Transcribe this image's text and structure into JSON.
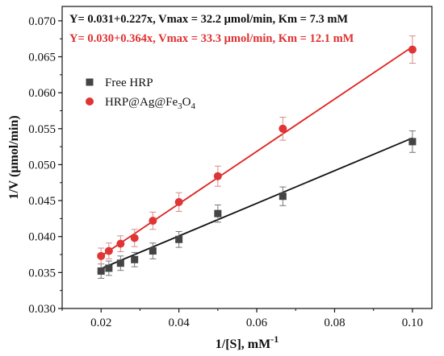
{
  "chart_data": {
    "type": "scatter",
    "xlabel": "1/[S], mM",
    "xlabel_sup": "-1",
    "ylabel": "1/V (μmol/min)",
    "xlim": [
      0.01,
      0.105
    ],
    "ylim": [
      0.03,
      0.072
    ],
    "xticks": [
      0.02,
      0.04,
      0.06,
      0.08,
      0.1
    ],
    "xtick_labels": [
      "0.02",
      "0.04",
      "0.06",
      "0.08",
      "0.10"
    ],
    "yticks": [
      0.03,
      0.035,
      0.04,
      0.045,
      0.05,
      0.055,
      0.06,
      0.065,
      0.07
    ],
    "ytick_labels": [
      "0.030",
      "0.035",
      "0.040",
      "0.045",
      "0.050",
      "0.055",
      "0.060",
      "0.065",
      "0.070"
    ],
    "annotations": [
      {
        "text": "Y= 0.031+0.227x, Vmax = 32.2 μmol/min, Km = 7.3 mM",
        "color": "#111111"
      },
      {
        "text": "Y= 0.030+0.364x, Vmax = 33.3 μmol/min, Km = 12.1 mM",
        "color": "#e03030"
      }
    ],
    "legend_position": "upper-left",
    "series": [
      {
        "name": "Free HRP",
        "legend_main": "Free HRP",
        "marker": "square",
        "color": "#444444",
        "line_color": "#111111",
        "fit": {
          "intercept": 0.031,
          "slope": 0.227,
          "x_range": [
            0.02,
            0.1
          ]
        },
        "x": [
          0.02,
          0.022,
          0.025,
          0.0286,
          0.0333,
          0.04,
          0.05,
          0.0667,
          0.1
        ],
        "y": [
          0.0352,
          0.0356,
          0.0363,
          0.0368,
          0.038,
          0.0396,
          0.0432,
          0.0456,
          0.0532
        ],
        "error": [
          0.001,
          0.001,
          0.001,
          0.001,
          0.0011,
          0.0011,
          0.0012,
          0.0013,
          0.0015
        ]
      },
      {
        "name": "HRP@Ag@Fe3O4",
        "legend_main": "HRP@Ag@Fe",
        "legend_sub1": "3",
        "legend_mid": "O",
        "legend_sub2": "4",
        "marker": "circle",
        "color": "#e03535",
        "line_color": "#e02020",
        "fit": {
          "intercept": 0.03,
          "slope": 0.364,
          "x_range": [
            0.02,
            0.1
          ]
        },
        "x": [
          0.02,
          0.022,
          0.025,
          0.0286,
          0.0333,
          0.04,
          0.05,
          0.0667,
          0.1
        ],
        "y": [
          0.0373,
          0.038,
          0.039,
          0.0398,
          0.0422,
          0.0448,
          0.0484,
          0.055,
          0.066
        ],
        "error": [
          0.0011,
          0.0011,
          0.0011,
          0.0012,
          0.0012,
          0.0013,
          0.0014,
          0.0016,
          0.0019
        ]
      }
    ]
  }
}
